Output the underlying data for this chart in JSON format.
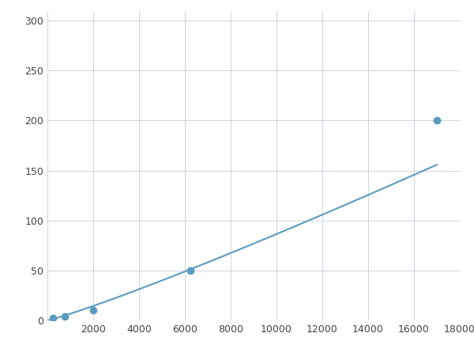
{
  "x": [
    250,
    750,
    2000,
    6250,
    17000
  ],
  "y": [
    2,
    4,
    10,
    50,
    200
  ],
  "line_color": "#5b9bbf",
  "marker_color": "#5b9bbf",
  "marker_size": 6,
  "line_width": 1.5,
  "xlim": [
    0,
    18000
  ],
  "ylim": [
    0,
    310
  ],
  "xticks": [
    0,
    2000,
    4000,
    6000,
    8000,
    10000,
    12000,
    14000,
    16000,
    18000
  ],
  "yticks": [
    0,
    50,
    100,
    150,
    200,
    250,
    300
  ],
  "grid_color": "#cdd5de",
  "background_color": "#ffffff",
  "figsize": [
    6.0,
    4.5
  ],
  "dpi": 100
}
